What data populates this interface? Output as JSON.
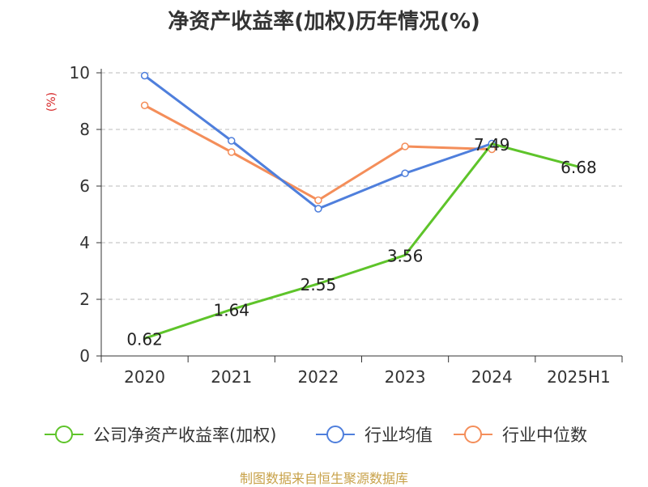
{
  "chart_data": {
    "type": "line",
    "title": "净资产收益率(加权)历年情况(%)",
    "ylabel": "(%)",
    "xlabel": "",
    "categories": [
      "2020",
      "2021",
      "2022",
      "2023",
      "2024",
      "2025H1"
    ],
    "ylim": [
      0,
      10
    ],
    "yticks": [
      0,
      2,
      4,
      6,
      8,
      10
    ],
    "grid": true,
    "legend_position": "bottom",
    "series": [
      {
        "name": "公司净资产收益率(加权)",
        "color": "#5ec42a",
        "values": [
          0.62,
          1.64,
          2.55,
          3.56,
          7.49,
          6.68
        ],
        "labels": [
          "0.62",
          "1.64",
          "2.55",
          "3.56",
          "7.49",
          "6.68"
        ]
      },
      {
        "name": "行业均值",
        "color": "#4f7fdc",
        "values": [
          9.9,
          7.6,
          5.2,
          6.45,
          7.5,
          null
        ]
      },
      {
        "name": "行业中位数",
        "color": "#f48e5a",
        "values": [
          8.85,
          7.2,
          5.5,
          7.4,
          7.3,
          null
        ]
      }
    ]
  },
  "source": "制图数据来自恒生聚源数据库"
}
